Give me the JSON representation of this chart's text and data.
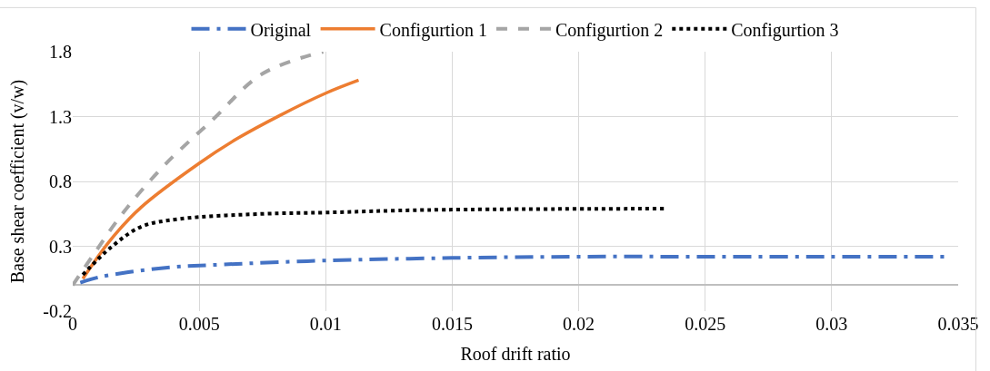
{
  "chart_data": {
    "type": "line",
    "xlabel": "Roof drift ratio",
    "ylabel": "Base shear coefficient (v/w)",
    "xlim": [
      0,
      0.035
    ],
    "xticks": [
      0,
      0.005,
      0.01,
      0.015,
      0.02,
      0.025,
      0.03,
      0.035
    ],
    "ylim": [
      -0.2,
      1.8
    ],
    "yticks": [
      -0.2,
      0.3,
      0.8,
      1.3,
      1.8
    ],
    "grid": true,
    "legend": "top",
    "marker": "none",
    "series": [
      {
        "name": "Original",
        "color": "#4472c4",
        "line_style": "dashdot",
        "x": [
          0.0003,
          0.001,
          0.0022,
          0.004,
          0.006,
          0.01,
          0.015,
          0.02,
          0.025,
          0.03,
          0.0345
        ],
        "values": [
          0.02,
          0.06,
          0.1,
          0.14,
          0.16,
          0.19,
          0.21,
          0.22,
          0.22,
          0.22,
          0.22
        ]
      },
      {
        "name": "Configurtion 1",
        "color": "#ed7d31",
        "line_style": "solid",
        "x": [
          0.0004,
          0.0015,
          0.0027,
          0.005,
          0.0065,
          0.0082,
          0.01,
          0.0113
        ],
        "values": [
          0.05,
          0.35,
          0.6,
          0.94,
          1.13,
          1.31,
          1.48,
          1.58
        ]
      },
      {
        "name": "Configurtion 2",
        "color": "#a5a5a5",
        "line_style": "dashed",
        "x": [
          0,
          0.0008,
          0.002,
          0.0036,
          0.0055,
          0.0075,
          0.0099
        ],
        "values": [
          0,
          0.23,
          0.56,
          0.92,
          1.27,
          1.63,
          1.8
        ]
      },
      {
        "name": "Configurtion 3",
        "color": "#000000",
        "line_style": "dotted",
        "x": [
          0.0004,
          0.0015,
          0.0027,
          0.0042,
          0.0075,
          0.01,
          0.014,
          0.0235
        ],
        "values": [
          0.08,
          0.29,
          0.45,
          0.51,
          0.55,
          0.56,
          0.58,
          0.59
        ]
      }
    ]
  }
}
